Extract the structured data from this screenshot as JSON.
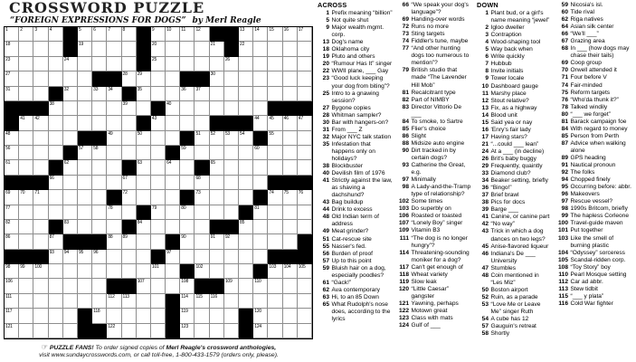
{
  "header": {
    "title": "CROSSWORD PUZZLE",
    "subtitle": "“FOREIGN EXPRESSIONS FOR DOGS”",
    "byline": "by Merl Reagle"
  },
  "grid": {
    "size": 21,
    "rows": [
      "....#....#....##.....",
      "....#....#.....#.....",
      ".........#...........",
      "......##....##.......",
      "...#....#............",
      "###.......#.......###",
      "#........#....###....",
      ".....##.....#....#...",
      "....#......#.........",
      "...#....#....#.......",
      "###...............###",
      ".......#....#....#...",
      ".........#......#....",
      "...#....#.....##.....",
      "....###....#........#",
      "###.......#.......###",
      "............#....#...",
      ".......##....##......",
      "...........#.........",
      ".....#.....#....#....",
      ".....##....#....#...."
    ]
  },
  "layout": {
    "across_col_break_after": 65,
    "down_col_break_after": 58
  },
  "clues": {
    "across_label": "ACROSS",
    "down_label": "DOWN",
    "across": [
      [
        1,
        "Prefix meaning “billion”"
      ],
      [
        5,
        "Not quite shut"
      ],
      [
        9,
        "Major wealth mgmt. corp."
      ],
      [
        13,
        "Dog's name"
      ],
      [
        18,
        "Oklahoma city"
      ],
      [
        19,
        "Pluto and others"
      ],
      [
        20,
        "“Rumour Has It” singer"
      ],
      [
        22,
        "WWII plane, ___ Gay"
      ],
      [
        23,
        "“Good luck keeping your dog from biting”?"
      ],
      [
        25,
        "Intro to a gnawing session?"
      ],
      [
        27,
        "Bygone copies"
      ],
      [
        28,
        "Whitman sampler?"
      ],
      [
        30,
        "Bar with hangers-on?"
      ],
      [
        31,
        "From ___ Z"
      ],
      [
        32,
        "Major NYC talk station"
      ],
      [
        35,
        "Infestation that happens only on holidays?"
      ],
      [
        38,
        "Blockbuster"
      ],
      [
        40,
        "Devilish film of 1976"
      ],
      [
        41,
        "Strictly against the law, as shaving a dachshund?"
      ],
      [
        43,
        "Bag buildup"
      ],
      [
        44,
        "Drink to excess"
      ],
      [
        48,
        "Old Indian term of address"
      ],
      [
        49,
        "Meat grinder?"
      ],
      [
        51,
        "Cat-rescue site"
      ],
      [
        55,
        "Nasser's fed."
      ],
      [
        56,
        "Burden of proof"
      ],
      [
        57,
        "Up to this point"
      ],
      [
        59,
        "Bluish hair on a dog, especially poodles?"
      ],
      [
        61,
        "“Gack!”"
      ],
      [
        62,
        "Ava contemporary"
      ],
      [
        63,
        "Hi, to an 85 Down"
      ],
      [
        65,
        "What Rudolph's nose does, according to the lyrics"
      ],
      [
        66,
        "“We speak your dog's language”?"
      ],
      [
        69,
        "Handing-over words"
      ],
      [
        72,
        "Runs no more"
      ],
      [
        73,
        "Sting targets"
      ],
      [
        74,
        "Fiddler's tune, maybe"
      ],
      [
        77,
        "“And other hunting dogs too numerous to mention”?"
      ],
      [
        79,
        "British studio that made “The Lavender Hill Mob”"
      ],
      [
        81,
        "Recalcitrant type"
      ],
      [
        82,
        "Part of NIMBY"
      ],
      [
        83,
        "Director Vittorio De ___"
      ],
      [
        84,
        "To smoke, to Sartre"
      ],
      [
        85,
        "Flier's choice"
      ],
      [
        86,
        "Slight"
      ],
      [
        88,
        "Midsize auto engine"
      ],
      [
        90,
        "Dirt tracked in by certain dogs?"
      ],
      [
        93,
        "Catherine the Great, e.g."
      ],
      [
        97,
        "Minimally"
      ],
      [
        98,
        "A Lady-and-the-Tramp type of relationship?"
      ],
      [
        102,
        "Some times"
      ],
      [
        103,
        "Do superbly on"
      ],
      [
        106,
        "Roasted or toasted"
      ],
      [
        107,
        "“Lonely Boy” singer"
      ],
      [
        109,
        "Vitamin B3"
      ],
      [
        111,
        "“The dog is no longer hungry”?"
      ],
      [
        114,
        "Threatening-sounding moniker for a dog?"
      ],
      [
        117,
        "Can't get enough of"
      ],
      [
        118,
        "Wheat variety"
      ],
      [
        119,
        "Slow leak"
      ],
      [
        120,
        "“Little Caesar” gangster"
      ],
      [
        121,
        "Yawning, perhaps"
      ],
      [
        122,
        "Motown great"
      ],
      [
        123,
        "Class with mats"
      ],
      [
        124,
        "Gulf of ___"
      ]
    ],
    "down": [
      [
        1,
        "Plant bud, or a girl's name meaning “jewel”"
      ],
      [
        2,
        "Igloo dweller"
      ],
      [
        3,
        "Contraption"
      ],
      [
        4,
        "Wood-shaping tool"
      ],
      [
        5,
        "Way back when"
      ],
      [
        6,
        "Write quickly"
      ],
      [
        7,
        "Hubbub"
      ],
      [
        8,
        "Invite initials"
      ],
      [
        9,
        "Tower locale"
      ],
      [
        10,
        "Dashboard gauge"
      ],
      [
        11,
        "Marshy place"
      ],
      [
        12,
        "Stout relative?"
      ],
      [
        13,
        "Fix, as a highway"
      ],
      [
        14,
        "Blood unit"
      ],
      [
        15,
        "Said yea or nay"
      ],
      [
        16,
        "'Enry's fair lady"
      ],
      [
        17,
        "Having stars?"
      ],
      [
        21,
        "“...could ___ lean”"
      ],
      [
        24,
        "At a ___ (in decline)"
      ],
      [
        26,
        "Brit's baby buggy"
      ],
      [
        29,
        "Frequently, quaintly"
      ],
      [
        33,
        "Diamond club?"
      ],
      [
        34,
        "Beaker setting, briefly"
      ],
      [
        36,
        "“Bingo!”"
      ],
      [
        37,
        "Brief brawl"
      ],
      [
        38,
        "Pics for docs"
      ],
      [
        39,
        "Barge ___"
      ],
      [
        41,
        "Canine, or canine part"
      ],
      [
        42,
        "“No way”"
      ],
      [
        43,
        "Trick in which a dog dances on two legs?"
      ],
      [
        45,
        "Anise-flavored liqueur"
      ],
      [
        46,
        "Indiana's De ___ University"
      ],
      [
        47,
        "Stumbles"
      ],
      [
        48,
        "Coin mentioned in “Les Miz”"
      ],
      [
        50,
        "Boston airport"
      ],
      [
        52,
        "Ruin, as a parade"
      ],
      [
        53,
        "“Love Me or Leave Me” singer Ruth"
      ],
      [
        54,
        "A cube has 12"
      ],
      [
        57,
        "Gauguin's retreat"
      ],
      [
        58,
        "Shortly"
      ],
      [
        59,
        "Nicosia's isl."
      ],
      [
        60,
        "Tide rival"
      ],
      [
        62,
        "Riga natives"
      ],
      [
        64,
        "Asian silk center"
      ],
      [
        66,
        "“We'll ___”"
      ],
      [
        67,
        "Grazing area"
      ],
      [
        68,
        "In ___ (how dogs may chase their tails)"
      ],
      [
        69,
        "Coop group"
      ],
      [
        70,
        "Orwell attended it"
      ],
      [
        71,
        "Four before V"
      ],
      [
        74,
        "Fair-minded"
      ],
      [
        75,
        "Reform targets"
      ],
      [
        76,
        "“Who'da thunk it?”"
      ],
      [
        78,
        "Talked windily"
      ],
      [
        80,
        "“___ we forget”"
      ],
      [
        81,
        "Barack campaign foe"
      ],
      [
        84,
        "With regard to money"
      ],
      [
        85,
        "Person from Perth"
      ],
      [
        87,
        "Advice when walking alone"
      ],
      [
        89,
        "GPS heading"
      ],
      [
        91,
        "Nautical pronoun"
      ],
      [
        92,
        "The folks"
      ],
      [
        94,
        "Chopped finely"
      ],
      [
        95,
        "Occurring before: abbr."
      ],
      [
        96,
        "Makeovers"
      ],
      [
        97,
        "Rescue vessel?"
      ],
      [
        98,
        "1990s Britcom, briefly"
      ],
      [
        99,
        "The hapless Corleone"
      ],
      [
        100,
        "Travel-guide maven"
      ],
      [
        101,
        "Put together"
      ],
      [
        103,
        "Like the smell of burning plastic"
      ],
      [
        104,
        "“Odyssey” sorceress"
      ],
      [
        105,
        "Scandal-ridden corp."
      ],
      [
        108,
        "“Toy Story” boy"
      ],
      [
        110,
        "Pearl Mosque setting"
      ],
      [
        112,
        "Car ad abbr."
      ],
      [
        113,
        "Stew tidbit"
      ],
      [
        115,
        "“___ y plata”"
      ],
      [
        116,
        "Cold War fighter"
      ]
    ]
  },
  "footer": {
    "hand": "☞",
    "fans": "PUZZLE FANS!",
    "line1_rest": "To order signed copies of",
    "anthologies": "Merl Reagle's crossword anthologies,",
    "line2": "visit www.sundaycrosswords.com, or call toll-free, 1-800-433-1579 (orders only, please)."
  }
}
